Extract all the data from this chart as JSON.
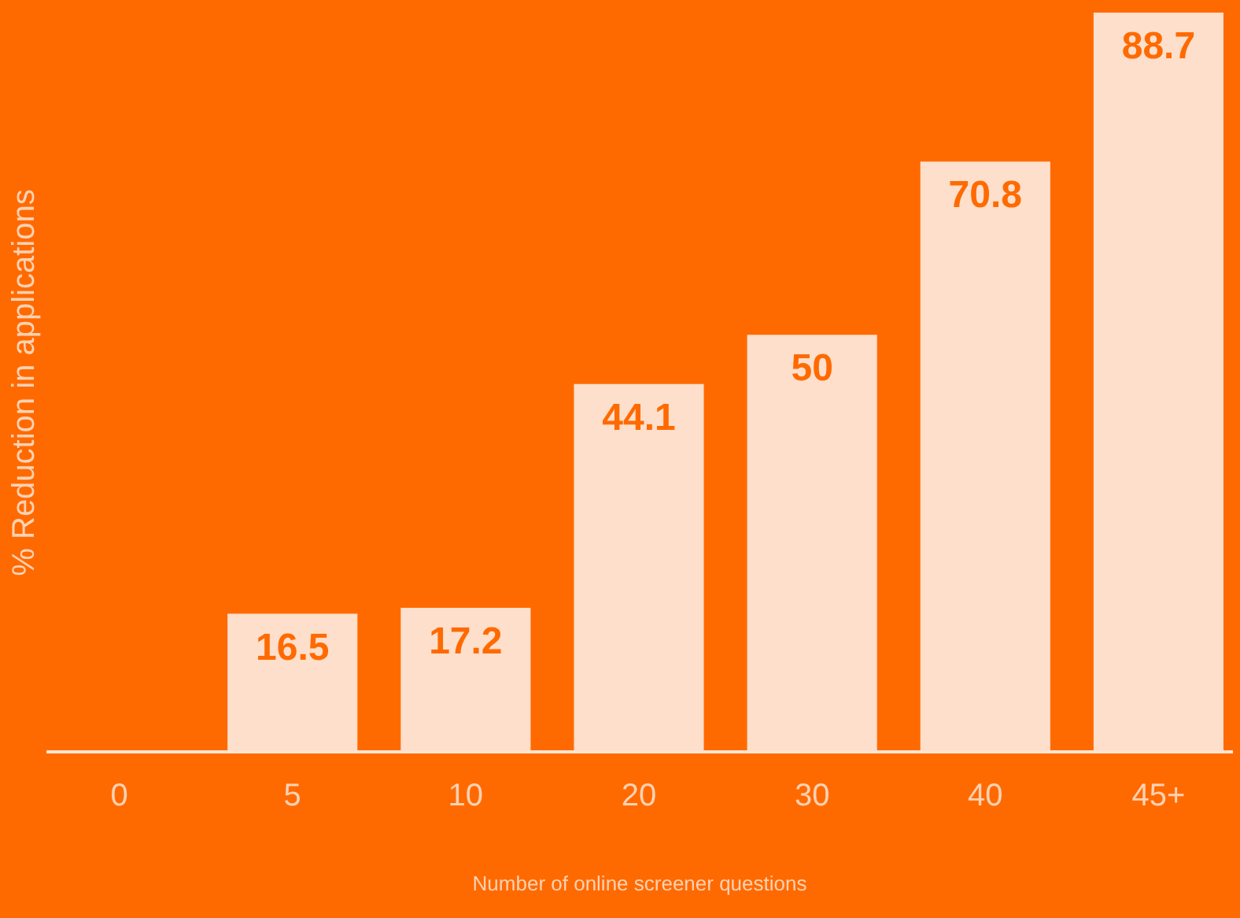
{
  "chart_data": {
    "type": "bar",
    "xlabel": "Number of online screener questions",
    "ylabel": "% Reduction in applications",
    "categories": [
      "0",
      "5",
      "10",
      "20",
      "30",
      "40",
      "45+"
    ],
    "values": [
      null,
      16.5,
      17.2,
      44.1,
      50,
      70.8,
      88.7
    ],
    "color": "#fddfcb",
    "data_labels": true,
    "grid": false
  }
}
